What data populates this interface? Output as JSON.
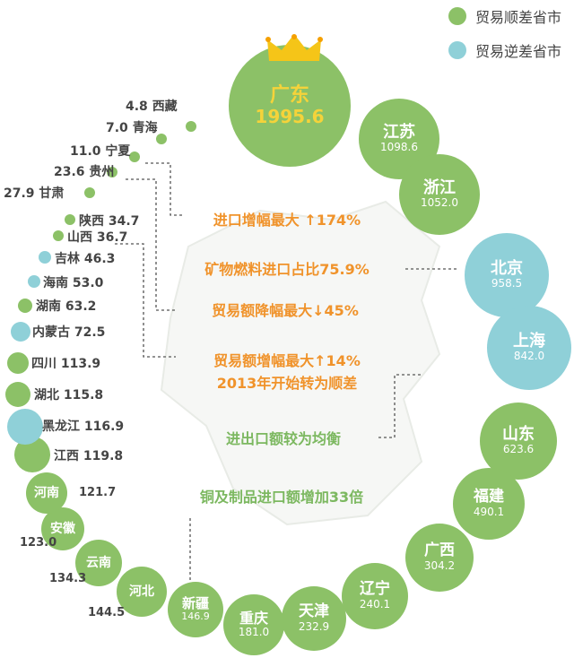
{
  "colors": {
    "surplus": "#8cc167",
    "deficit": "#8fd0d8",
    "orange": "#f0932b",
    "green_text": "#7cb860"
  },
  "legend": [
    {
      "label": "贸易顺差省市",
      "type": "surplus"
    },
    {
      "label": "贸易逆差省市",
      "type": "deficit"
    }
  ],
  "provinces": [
    {
      "name": "广东",
      "value": "1995.6",
      "type": "surplus"
    },
    {
      "name": "江苏",
      "value": "1098.6",
      "type": "surplus"
    },
    {
      "name": "浙江",
      "value": "1052.0",
      "type": "surplus"
    },
    {
      "name": "北京",
      "value": "958.5",
      "type": "deficit"
    },
    {
      "name": "上海",
      "value": "842.0",
      "type": "deficit"
    },
    {
      "name": "山东",
      "value": "623.6",
      "type": "surplus"
    },
    {
      "name": "福建",
      "value": "490.1",
      "type": "surplus"
    },
    {
      "name": "广西",
      "value": "304.2",
      "type": "surplus"
    },
    {
      "name": "辽宁",
      "value": "240.1",
      "type": "surplus"
    },
    {
      "name": "天津",
      "value": "232.9",
      "type": "surplus"
    },
    {
      "name": "重庆",
      "value": "181.0",
      "type": "surplus"
    },
    {
      "name": "新疆",
      "value": "146.9",
      "type": "surplus"
    },
    {
      "name": "河北",
      "value": "144.5",
      "type": "surplus"
    },
    {
      "name": "云南",
      "value": "134.3",
      "type": "surplus"
    },
    {
      "name": "安徽",
      "value": "123.0",
      "type": "surplus"
    },
    {
      "name": "河南",
      "value": "121.7",
      "type": "surplus"
    },
    {
      "name": "江西",
      "value": "119.8",
      "type": "surplus"
    },
    {
      "name": "黑龙江",
      "value": "116.9",
      "type": "deficit"
    },
    {
      "name": "湖北",
      "value": "115.8",
      "type": "surplus"
    },
    {
      "name": "四川",
      "value": "113.9",
      "type": "surplus"
    },
    {
      "name": "内蒙古",
      "value": "72.5",
      "type": "deficit"
    },
    {
      "name": "湖南",
      "value": "63.2",
      "type": "surplus"
    },
    {
      "name": "海南",
      "value": "53.0",
      "type": "deficit"
    },
    {
      "name": "吉林",
      "value": "46.3",
      "type": "deficit"
    },
    {
      "name": "山西",
      "value": "36.7",
      "type": "surplus"
    },
    {
      "name": "陕西",
      "value": "34.7",
      "type": "surplus"
    },
    {
      "name": "甘肃",
      "value": "27.9",
      "type": "surplus"
    },
    {
      "name": "贵州",
      "value": "23.6",
      "type": "surplus"
    },
    {
      "name": "宁夏",
      "value": "11.0",
      "type": "surplus"
    },
    {
      "name": "青海",
      "value": "7.0",
      "type": "surplus"
    },
    {
      "name": "西藏",
      "value": "4.8",
      "type": "surplus"
    }
  ],
  "notes": [
    {
      "text": "进口增幅最大 ↑174%",
      "color": "orange"
    },
    {
      "text": "矿物燃料进口占比75.9%",
      "color": "orange"
    },
    {
      "text": "贸易额降幅最大↓45%",
      "color": "orange"
    },
    {
      "text": "贸易额增幅最大↑14%",
      "color": "orange"
    },
    {
      "text": "2013年开始转为顺差",
      "color": "orange"
    },
    {
      "text": "进出口额较为均衡",
      "color": "green_text"
    },
    {
      "text": "铜及制品进口额增加33倍",
      "color": "green_text"
    }
  ]
}
